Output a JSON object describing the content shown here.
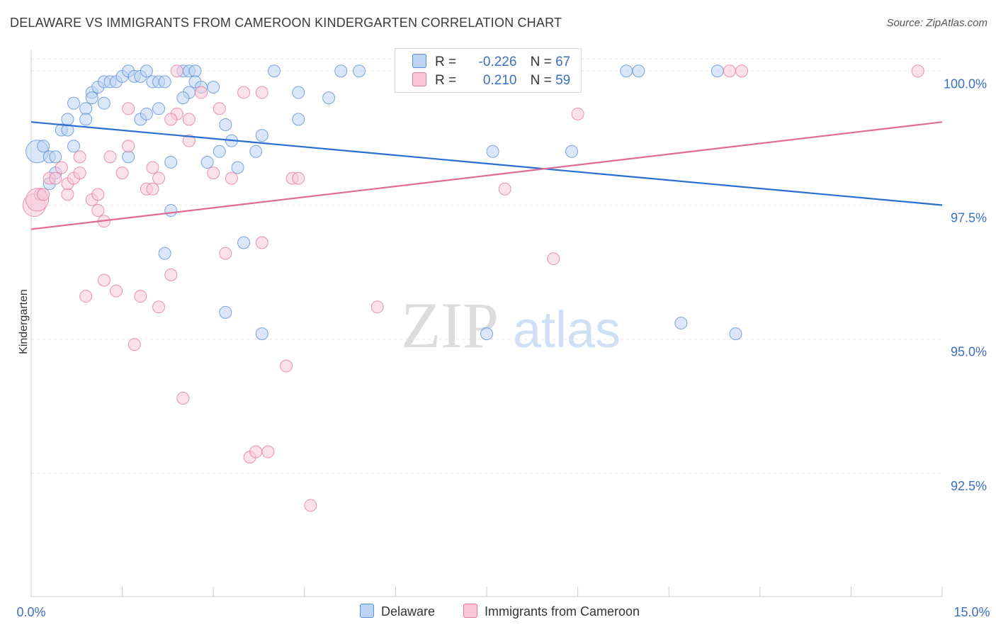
{
  "title": "DELAWARE VS IMMIGRANTS FROM CAMEROON KINDERGARTEN CORRELATION CHART",
  "source": "Source: ZipAtlas.com",
  "watermark": {
    "zip": "ZIP",
    "atlas": "atlas"
  },
  "legend": {
    "r_label": "R =",
    "n_label": "N =",
    "rows": [
      {
        "r": "-0.226",
        "n": "67",
        "color": "#5b8fd6",
        "fill": "#bcd3f3"
      },
      {
        "r": "0.210",
        "n": "59",
        "color": "#e07aa0",
        "fill": "#f8c8d8"
      }
    ]
  },
  "chart_data": {
    "type": "scatter",
    "title": "DELAWARE VS IMMIGRANTS FROM CAMEROON KINDERGARTEN CORRELATION CHART",
    "ylabel": "Kindergarten",
    "xlabel": "",
    "xlim": [
      0,
      15
    ],
    "ylim": [
      90.2,
      100.4
    ],
    "x_tick_labels": [
      "0.0%",
      "15.0%"
    ],
    "y_ticks": [
      92.5,
      95.0,
      97.5,
      100.0
    ],
    "y_tick_labels": [
      "92.5%",
      "95.0%",
      "97.5%",
      "100.0%"
    ],
    "series": [
      {
        "name": "Delaware",
        "color": "#5b8fd6",
        "fill": "#bcd3f3",
        "trend": {
          "x": [
            0,
            15
          ],
          "y": [
            99.05,
            97.5
          ]
        },
        "points": [
          [
            0.1,
            98.5
          ],
          [
            0.2,
            98.6
          ],
          [
            0.3,
            98.4
          ],
          [
            0.4,
            98.4
          ],
          [
            0.3,
            97.9
          ],
          [
            0.4,
            98.1
          ],
          [
            0.5,
            98.9
          ],
          [
            0.6,
            98.9
          ],
          [
            0.7,
            98.6
          ],
          [
            0.6,
            99.1
          ],
          [
            0.7,
            99.4
          ],
          [
            0.9,
            99.3
          ],
          [
            0.9,
            99.1
          ],
          [
            1.0,
            99.6
          ],
          [
            1.0,
            99.5
          ],
          [
            1.1,
            99.7
          ],
          [
            1.2,
            99.8
          ],
          [
            1.3,
            99.8
          ],
          [
            1.4,
            99.8
          ],
          [
            1.2,
            99.4
          ],
          [
            1.5,
            99.9
          ],
          [
            1.6,
            100.0
          ],
          [
            1.7,
            99.9
          ],
          [
            1.8,
            99.9
          ],
          [
            1.9,
            100.0
          ],
          [
            2.0,
            99.8
          ],
          [
            2.1,
            99.8
          ],
          [
            2.2,
            99.8
          ],
          [
            1.6,
            98.4
          ],
          [
            1.8,
            99.1
          ],
          [
            1.9,
            99.2
          ],
          [
            2.1,
            99.3
          ],
          [
            2.3,
            98.3
          ],
          [
            2.3,
            97.4
          ],
          [
            2.2,
            96.6
          ],
          [
            2.5,
            100.0
          ],
          [
            2.6,
            100.0
          ],
          [
            2.7,
            100.0
          ],
          [
            2.6,
            99.6
          ],
          [
            2.5,
            99.5
          ],
          [
            2.7,
            99.8
          ],
          [
            2.8,
            99.7
          ],
          [
            3.0,
            99.7
          ],
          [
            2.9,
            98.3
          ],
          [
            3.1,
            98.5
          ],
          [
            3.3,
            98.7
          ],
          [
            3.2,
            99.0
          ],
          [
            3.2,
            95.5
          ],
          [
            3.5,
            96.8
          ],
          [
            3.4,
            98.2
          ],
          [
            3.7,
            98.5
          ],
          [
            3.8,
            98.8
          ],
          [
            3.8,
            95.1
          ],
          [
            4.0,
            100.0
          ],
          [
            4.4,
            99.6
          ],
          [
            4.4,
            99.1
          ],
          [
            4.9,
            99.5
          ],
          [
            5.1,
            100.0
          ],
          [
            5.4,
            100.0
          ],
          [
            7.5,
            95.1
          ],
          [
            7.6,
            98.5
          ],
          [
            8.9,
            98.5
          ],
          [
            9.8,
            100.0
          ],
          [
            10.0,
            100.0
          ],
          [
            10.7,
            95.3
          ],
          [
            11.3,
            100.0
          ],
          [
            11.6,
            95.1
          ]
        ]
      },
      {
        "name": "Immigrants from Cameroon",
        "color": "#e07aa0",
        "fill": "#f8c8d8",
        "trend": {
          "x": [
            0,
            15
          ],
          "y": [
            97.05,
            99.05
          ]
        },
        "points": [
          [
            0.05,
            97.5
          ],
          [
            0.15,
            97.7
          ],
          [
            0.3,
            98.0
          ],
          [
            0.4,
            98.0
          ],
          [
            0.5,
            98.2
          ],
          [
            0.6,
            97.7
          ],
          [
            0.6,
            97.9
          ],
          [
            0.7,
            98.0
          ],
          [
            0.8,
            98.4
          ],
          [
            0.8,
            98.1
          ],
          [
            0.9,
            95.8
          ],
          [
            1.0,
            97.6
          ],
          [
            1.1,
            97.4
          ],
          [
            1.2,
            97.2
          ],
          [
            1.2,
            96.1
          ],
          [
            1.3,
            98.4
          ],
          [
            1.4,
            95.9
          ],
          [
            1.5,
            98.1
          ],
          [
            1.6,
            98.6
          ],
          [
            1.6,
            99.3
          ],
          [
            1.7,
            94.9
          ],
          [
            1.8,
            95.8
          ],
          [
            1.9,
            97.8
          ],
          [
            2.0,
            98.2
          ],
          [
            2.0,
            97.8
          ],
          [
            2.1,
            98.0
          ],
          [
            2.1,
            95.6
          ],
          [
            2.3,
            96.2
          ],
          [
            2.4,
            100.0
          ],
          [
            2.4,
            99.2
          ],
          [
            2.5,
            93.9
          ],
          [
            2.6,
            98.7
          ],
          [
            2.6,
            99.1
          ],
          [
            2.8,
            99.6
          ],
          [
            3.0,
            98.1
          ],
          [
            3.1,
            99.3
          ],
          [
            3.2,
            96.6
          ],
          [
            3.3,
            98.0
          ],
          [
            3.5,
            99.6
          ],
          [
            3.6,
            92.8
          ],
          [
            3.7,
            92.9
          ],
          [
            3.8,
            99.6
          ],
          [
            3.8,
            96.8
          ],
          [
            3.9,
            92.9
          ],
          [
            4.2,
            94.5
          ],
          [
            4.3,
            98.0
          ],
          [
            4.4,
            98.0
          ],
          [
            4.6,
            91.9
          ],
          [
            5.7,
            95.6
          ],
          [
            7.8,
            97.8
          ],
          [
            8.6,
            96.5
          ],
          [
            9.0,
            99.2
          ],
          [
            11.5,
            100.0
          ],
          [
            11.7,
            100.0
          ],
          [
            14.6,
            100.0
          ],
          [
            0.1,
            97.6
          ],
          [
            0.2,
            97.7
          ],
          [
            1.1,
            97.7
          ],
          [
            2.3,
            99.1
          ]
        ]
      }
    ]
  },
  "bottom_legend": [
    "Delaware",
    "Immigrants from Cameroon"
  ]
}
